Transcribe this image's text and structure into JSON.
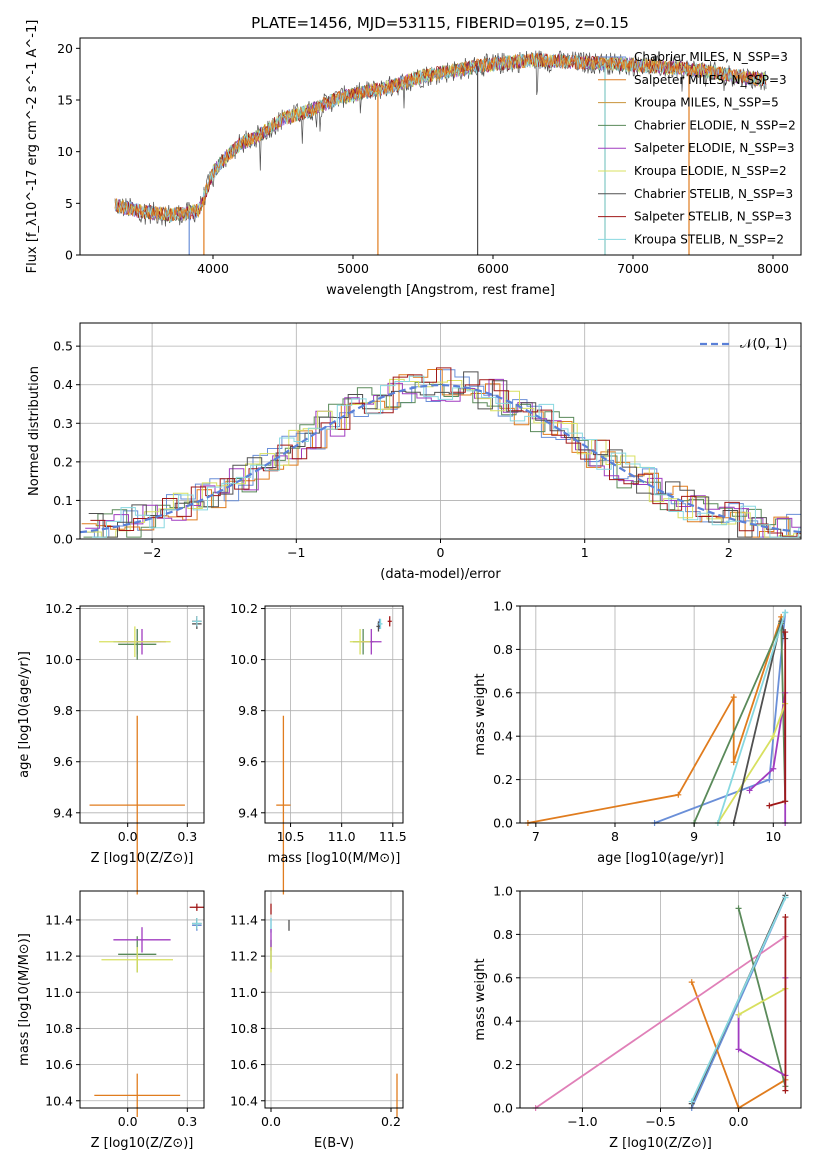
{
  "colors": [
    "#6a8fd8",
    "#e07c1e",
    "#c8923a",
    "#5a8a5a",
    "#a03cc0",
    "#d8e060",
    "#505050",
    "#a01818",
    "#88d8e0"
  ],
  "chart_data": [
    {
      "id": "spectrum",
      "type": "line",
      "title": "PLATE=1456, MJD=53115, FIBERID=0195, z=0.15",
      "xlabel": "wavelength [Angstrom, rest frame]",
      "ylabel": "Flux [f_λ10^-17 erg cm^-2 s^-1 A^-1]",
      "xlim": [
        3050,
        8200
      ],
      "ylim": [
        0,
        21
      ],
      "xticks": [
        4000,
        5000,
        6000,
        7000,
        8000
      ],
      "yticks": [
        0,
        5,
        10,
        15,
        20
      ],
      "series": [
        {
          "name": "Chabrier MILES, N_SSP=3"
        },
        {
          "name": "Salpeter MILES, N_SSP=3"
        },
        {
          "name": "Kroupa MILES, N_SSP=5"
        },
        {
          "name": "Chabrier ELODIE, N_SSP=2"
        },
        {
          "name": "Salpeter ELODIE, N_SSP=3"
        },
        {
          "name": "Kroupa ELODIE, N_SSP=2"
        },
        {
          "name": "Chabrier STELIB, N_SSP=3"
        },
        {
          "name": "Salpeter STELIB, N_SSP=3"
        },
        {
          "name": "Kroupa STELIB, N_SSP=2"
        }
      ],
      "continuum": {
        "x": [
          3300,
          3400,
          3500,
          3600,
          3700,
          3800,
          3900,
          4000,
          4100,
          4200,
          4300,
          4400,
          4500,
          4700,
          4900,
          5100,
          5300,
          5500,
          5700,
          5900,
          6100,
          6300,
          6500,
          6700,
          6900,
          7100,
          7300,
          7500,
          7700,
          7900
        ],
        "y": [
          4.8,
          4.5,
          4.2,
          4.0,
          3.9,
          4.0,
          4.3,
          8.0,
          9.6,
          10.8,
          11.3,
          12.3,
          13.2,
          14.0,
          15.2,
          15.8,
          16.4,
          17.3,
          17.8,
          18.3,
          18.6,
          18.9,
          18.7,
          18.6,
          18.5,
          18.3,
          18.1,
          17.8,
          17.4,
          17.0
        ]
      }
    },
    {
      "id": "residuals",
      "type": "histogram",
      "xlabel": "(data-model)/error",
      "ylabel": "Normed distribution",
      "xlim": [
        -2.5,
        2.5
      ],
      "ylim": [
        0,
        0.56
      ],
      "xticks": [
        -2,
        -1,
        0,
        1,
        2
      ],
      "yticks": [
        0.0,
        0.1,
        0.2,
        0.3,
        0.4,
        0.5
      ],
      "legend": "𝒩(0, 1)",
      "legend_position": "top-right",
      "reference_curve": {
        "type": "gaussian",
        "mean": 0,
        "sigma": 1
      }
    },
    {
      "id": "age-vs-Z",
      "type": "errorbar",
      "xlabel": "Z [log10(Z/Z⊙)]",
      "ylabel": "age  [log10(age/yr)]",
      "xlim": [
        -0.2,
        0.32
      ],
      "ylim": [
        9.36,
        10.21
      ],
      "xticks": [
        0.0,
        0.25
      ],
      "yticks": [
        9.4,
        9.6,
        9.8,
        10.0,
        10.2
      ],
      "points": [
        {
          "series": 0,
          "x": 0.04,
          "y": 10.07,
          "xerr": 0.1,
          "yerr": 0.05
        },
        {
          "series": 1,
          "x": 0.04,
          "y": 9.43,
          "xerr": 0.2,
          "yerr": 0.35
        },
        {
          "series": 3,
          "x": 0.04,
          "y": 10.06,
          "xerr": 0.08,
          "yerr": 0.06
        },
        {
          "series": 4,
          "x": 0.06,
          "y": 10.07,
          "xerr": 0.1,
          "yerr": 0.05
        },
        {
          "series": 5,
          "x": 0.03,
          "y": 10.07,
          "xerr": 0.15,
          "yerr": 0.06
        },
        {
          "series": 6,
          "x": 0.29,
          "y": 10.14,
          "xerr": 0.02,
          "yerr": 0.02
        },
        {
          "series": 7,
          "x": 0.29,
          "y": 10.15,
          "xerr": 0.02,
          "yerr": 0.02
        },
        {
          "series": 8,
          "x": 0.29,
          "y": 10.15,
          "xerr": 0.02,
          "yerr": 0.02
        }
      ]
    },
    {
      "id": "age-vs-mass",
      "type": "errorbar",
      "xlabel": "mass [log10(M/M⊙)]",
      "ylabel": "",
      "xlim": [
        10.25,
        11.6
      ],
      "ylim": [
        9.36,
        10.21
      ],
      "xticks": [
        10.5,
        11.0,
        11.5
      ],
      "yticks": [
        9.4,
        9.6,
        9.8,
        10.0,
        10.2
      ],
      "points": [
        {
          "series": 0,
          "x": 11.37,
          "y": 10.14,
          "xerr": 0.02,
          "yerr": 0.02
        },
        {
          "series": 1,
          "x": 10.43,
          "y": 9.43,
          "xerr": 0.07,
          "yerr": 0.35
        },
        {
          "series": 3,
          "x": 11.21,
          "y": 10.07,
          "xerr": 0.1,
          "yerr": 0.05
        },
        {
          "series": 4,
          "x": 11.29,
          "y": 10.07,
          "xerr": 0.1,
          "yerr": 0.05
        },
        {
          "series": 5,
          "x": 11.18,
          "y": 10.07,
          "xerr": 0.1,
          "yerr": 0.05
        },
        {
          "series": 6,
          "x": 11.36,
          "y": 10.13,
          "xerr": 0.02,
          "yerr": 0.02
        },
        {
          "series": 7,
          "x": 11.47,
          "y": 10.15,
          "xerr": 0.02,
          "yerr": 0.02
        },
        {
          "series": 8,
          "x": 11.38,
          "y": 10.14,
          "xerr": 0.02,
          "yerr": 0.02
        }
      ]
    },
    {
      "id": "massweight-vs-age",
      "type": "line",
      "xlabel": "age  [log10(age/yr)]",
      "ylabel": "mass weight",
      "xlim": [
        6.8,
        10.35
      ],
      "ylim": [
        0,
        1.0
      ],
      "xticks": [
        7,
        8,
        9,
        10
      ],
      "yticks": [
        0.0,
        0.2,
        0.4,
        0.6,
        0.8,
        1.0
      ],
      "series": [
        {
          "color_index": 0,
          "x": [
            8.5,
            9.95,
            10.15
          ],
          "y": [
            0.0,
            0.2,
            0.97
          ]
        },
        {
          "color_index": 1,
          "x": [
            6.9,
            8.8,
            9.5,
            9.5,
            10.1
          ],
          "y": [
            0.0,
            0.13,
            0.58,
            0.28,
            0.95
          ]
        },
        {
          "color_index": 3,
          "x": [
            9.0,
            10.1,
            10.15
          ],
          "y": [
            0.0,
            0.92,
            0.1
          ]
        },
        {
          "color_index": 4,
          "x": [
            9.7,
            10.0,
            10.15,
            10.15
          ],
          "y": [
            0.15,
            0.25,
            0.6,
            0.0
          ]
        },
        {
          "color_index": 5,
          "x": [
            9.3,
            10.0,
            10.15
          ],
          "y": [
            0.0,
            0.4,
            0.55
          ]
        },
        {
          "color_index": 6,
          "x": [
            9.5,
            10.1,
            10.15
          ],
          "y": [
            0.0,
            0.93,
            0.85
          ]
        },
        {
          "color_index": 7,
          "x": [
            9.95,
            10.15,
            10.15
          ],
          "y": [
            0.08,
            0.1,
            0.88
          ]
        },
        {
          "color_index": 8,
          "x": [
            9.3,
            10.15
          ],
          "y": [
            0.0,
            0.97
          ]
        }
      ]
    },
    {
      "id": "mass-vs-Z",
      "type": "errorbar",
      "xlabel": "Z [log10(Z/Z⊙)]",
      "ylabel": "mass [log10(M/M⊙)]",
      "xlim": [
        -0.2,
        0.32
      ],
      "ylim": [
        10.36,
        11.56
      ],
      "xticks": [
        0.0,
        0.25
      ],
      "yticks": [
        10.4,
        10.6,
        10.8,
        11.0,
        11.2,
        11.4
      ],
      "points": [
        {
          "series": 0,
          "x": 0.29,
          "y": 11.37,
          "xerr": 0.02,
          "yerr": 0.03
        },
        {
          "series": 1,
          "x": 0.04,
          "y": 10.43,
          "xerr": 0.18,
          "yerr": 0.12
        },
        {
          "series": 3,
          "x": 0.04,
          "y": 11.21,
          "xerr": 0.08,
          "yerr": 0.1
        },
        {
          "series": 4,
          "x": 0.06,
          "y": 11.29,
          "xerr": 0.12,
          "yerr": 0.07
        },
        {
          "series": 5,
          "x": 0.04,
          "y": 11.18,
          "xerr": 0.15,
          "yerr": 0.07
        },
        {
          "series": 6,
          "x": 0.29,
          "y": 11.38,
          "xerr": 0.02,
          "yerr": 0.03
        },
        {
          "series": 7,
          "x": 0.29,
          "y": 11.47,
          "xerr": 0.03,
          "yerr": 0.02
        },
        {
          "series": 8,
          "x": 0.29,
          "y": 11.38,
          "xerr": 0.02,
          "yerr": 0.03
        }
      ]
    },
    {
      "id": "mass-vs-EBV",
      "type": "errorbar",
      "xlabel": "E(B-V)",
      "ylabel": "",
      "xlim": [
        -0.01,
        0.22
      ],
      "ylim": [
        10.36,
        11.56
      ],
      "xticks": [
        0.0,
        0.2
      ],
      "yticks": [
        10.4,
        10.6,
        10.8,
        11.0,
        11.2,
        11.4
      ],
      "points": [
        {
          "series": 0,
          "x": 0.0,
          "y": 11.37,
          "xerr": 0.0,
          "yerr": 0.04
        },
        {
          "series": 1,
          "x": 0.21,
          "y": 10.43,
          "xerr": 0.0,
          "yerr": 0.12
        },
        {
          "series": 3,
          "x": 0.0,
          "y": 11.21,
          "xerr": 0.0,
          "yerr": 0.08
        },
        {
          "series": 4,
          "x": 0.0,
          "y": 11.29,
          "xerr": 0.0,
          "yerr": 0.06
        },
        {
          "series": 5,
          "x": 0.0,
          "y": 11.18,
          "xerr": 0.0,
          "yerr": 0.07
        },
        {
          "series": 6,
          "x": 0.03,
          "y": 11.37,
          "xerr": 0.0,
          "yerr": 0.03
        },
        {
          "series": 7,
          "x": 0.0,
          "y": 11.46,
          "xerr": 0.0,
          "yerr": 0.03
        },
        {
          "series": 8,
          "x": 0.0,
          "y": 11.38,
          "xerr": 0.0,
          "yerr": 0.03
        }
      ]
    },
    {
      "id": "massweight-vs-Z",
      "type": "line",
      "xlabel": "Z [log10(Z/Z⊙)]",
      "ylabel": "mass weight",
      "xlim": [
        -1.4,
        0.4
      ],
      "ylim": [
        0,
        1.0
      ],
      "xticks": [
        -1.0,
        -0.5,
        0.0
      ],
      "yticks": [
        0.0,
        0.2,
        0.4,
        0.6,
        0.8,
        1.0
      ],
      "series": [
        {
          "color_index": 0,
          "x": [
            -0.3,
            0.3
          ],
          "y": [
            0.0,
            0.97
          ]
        },
        {
          "color_index": 1,
          "x": [
            -0.3,
            0.0,
            0.3
          ],
          "y": [
            0.58,
            0.0,
            0.13
          ]
        },
        {
          "color_index": 2,
          "x": [
            -1.3,
            0.3
          ],
          "y": [
            0.0,
            0.79
          ]
        },
        {
          "color_index": 3,
          "x": [
            0.0,
            0.3
          ],
          "y": [
            0.92,
            0.1
          ]
        },
        {
          "color_index": 4,
          "x": [
            0.0,
            0.0,
            0.3,
            0.3
          ],
          "y": [
            0.43,
            0.27,
            0.15,
            0.6
          ]
        },
        {
          "color_index": 5,
          "x": [
            0.0,
            0.3
          ],
          "y": [
            0.43,
            0.55
          ]
        },
        {
          "color_index": 6,
          "x": [
            -0.3,
            0.3
          ],
          "y": [
            0.02,
            0.98
          ]
        },
        {
          "color_index": 7,
          "x": [
            0.3,
            0.3
          ],
          "y": [
            0.08,
            0.88
          ]
        },
        {
          "color_index": 8,
          "x": [
            -0.3,
            0.3
          ],
          "y": [
            0.03,
            0.97
          ]
        }
      ]
    }
  ]
}
